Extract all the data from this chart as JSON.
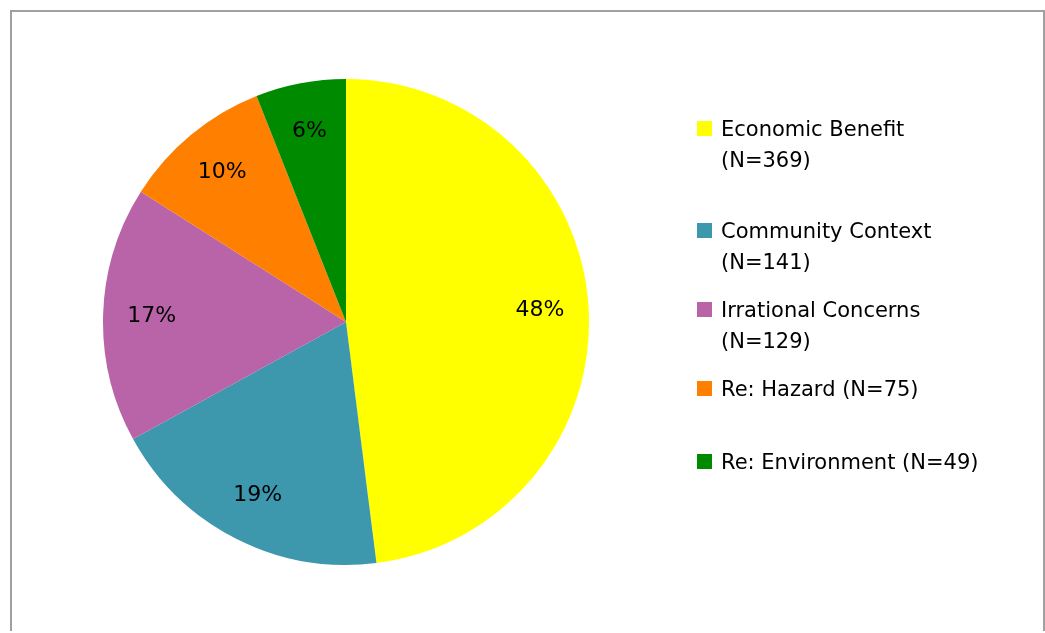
{
  "chart_data": {
    "type": "pie",
    "categories": [
      "Economic Benefit (N=369)",
      "Community Context (N=141)",
      "Irrational Concerns (N=129)",
      "Re: Hazard (N=75)",
      "Re: Environment (N=49)"
    ],
    "values": [
      48,
      19,
      17,
      10,
      6
    ],
    "colors": [
      "#ffff00",
      "#3d97ad",
      "#b963a8",
      "#ff7f00",
      "#008a00"
    ],
    "value_labels": [
      "48%",
      "19%",
      "17%",
      "10%",
      "6%"
    ],
    "legend": "right"
  }
}
